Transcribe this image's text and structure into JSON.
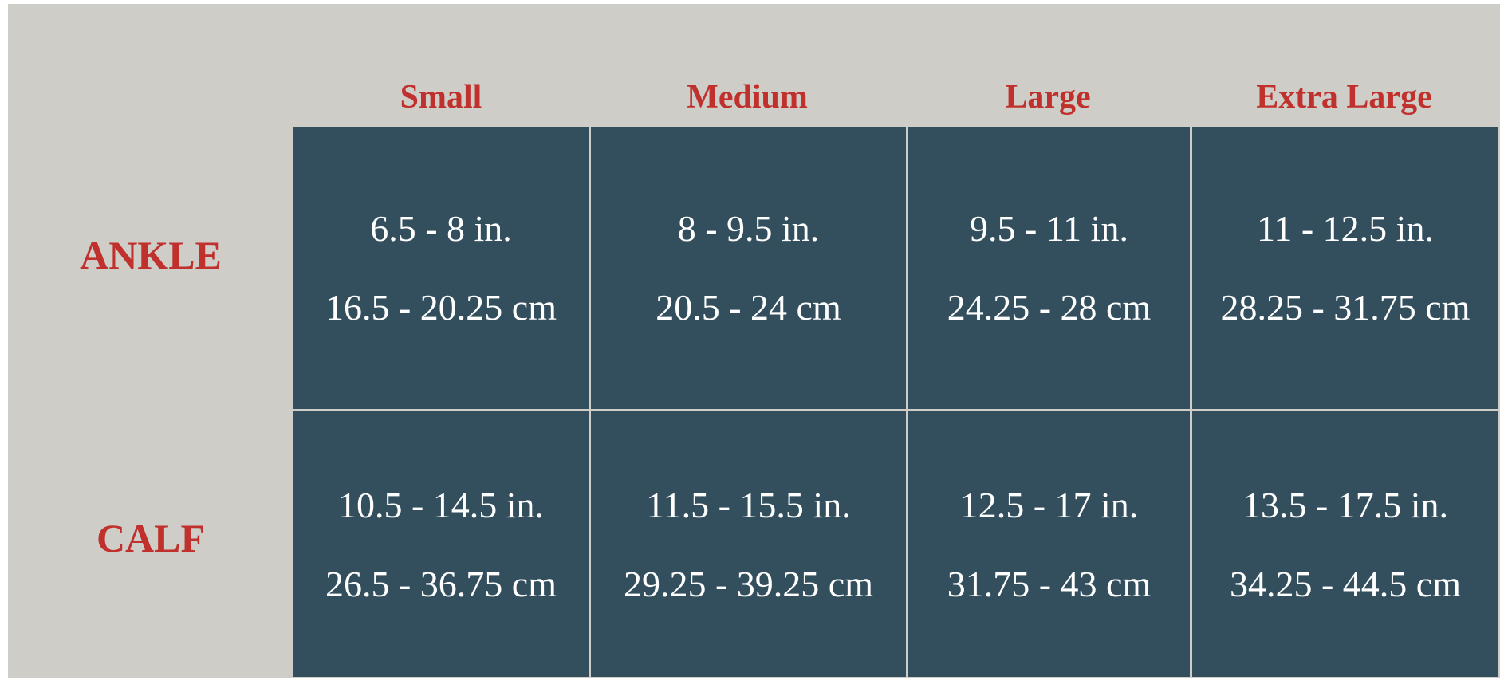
{
  "table": {
    "columns": [
      "Small",
      "Medium",
      "Large",
      "Extra Large"
    ],
    "rows": [
      {
        "label": "ANKLE",
        "cells": [
          {
            "inches": "6.5 - 8 in.",
            "cm": "16.5 - 20.25 cm"
          },
          {
            "inches": "8 - 9.5 in.",
            "cm": "20.5 - 24 cm"
          },
          {
            "inches": "9.5 - 11 in.",
            "cm": "24.25 - 28 cm"
          },
          {
            "inches": "11 - 12.5 in.",
            "cm": "28.25 - 31.75 cm"
          }
        ]
      },
      {
        "label": "CALF",
        "cells": [
          {
            "inches": "10.5 - 14.5 in.",
            "cm": "26.5 - 36.75 cm"
          },
          {
            "inches": "11.5 - 15.5 in.",
            "cm": "29.25 - 39.25 cm"
          },
          {
            "inches": "12.5 - 17 in.",
            "cm": "31.75 - 43 cm"
          },
          {
            "inches": "13.5 - 17.5 in.",
            "cm": "34.25 - 44.5 cm"
          }
        ]
      }
    ]
  }
}
